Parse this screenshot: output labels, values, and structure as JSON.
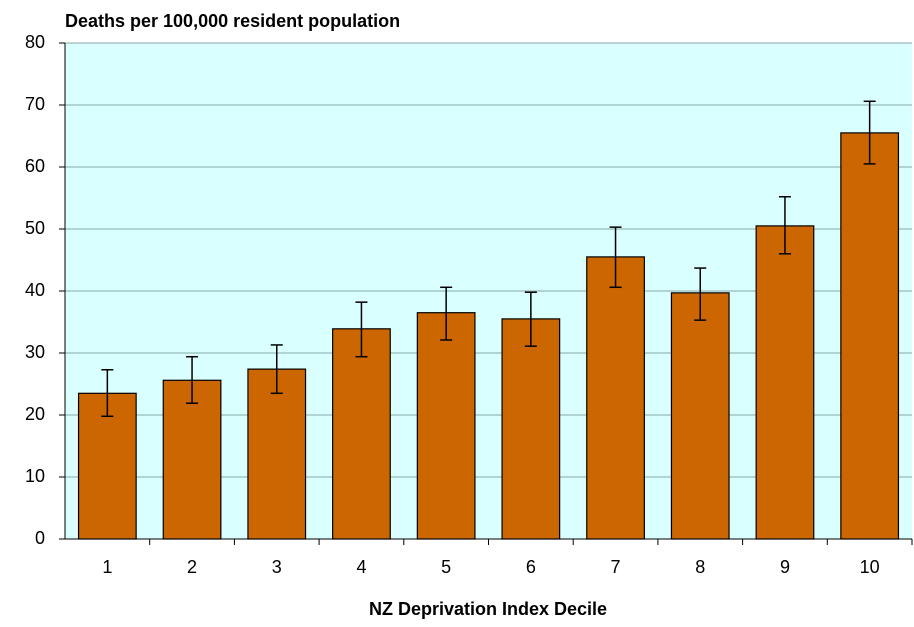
{
  "chart_data": {
    "type": "bar",
    "title": "Deaths per 100,000 resident population",
    "x_label": "NZ Deprivation Index Decile",
    "categories": [
      "1",
      "2",
      "3",
      "4",
      "5",
      "6",
      "7",
      "8",
      "9",
      "10"
    ],
    "values": [
      23.5,
      25.6,
      27.4,
      33.9,
      36.5,
      35.5,
      45.5,
      39.7,
      50.5,
      65.5
    ],
    "lower": [
      19.8,
      21.9,
      23.5,
      29.4,
      32.1,
      31.1,
      40.6,
      35.3,
      46.0,
      60.5
    ],
    "upper": [
      27.3,
      29.4,
      31.3,
      38.2,
      40.6,
      39.8,
      50.3,
      43.7,
      55.2,
      70.6
    ],
    "color": "#cc6600",
    "ylim": [
      0,
      80
    ],
    "yticks": [
      0,
      10,
      20,
      30,
      40,
      50,
      60,
      70,
      80
    ],
    "grid": true
  }
}
